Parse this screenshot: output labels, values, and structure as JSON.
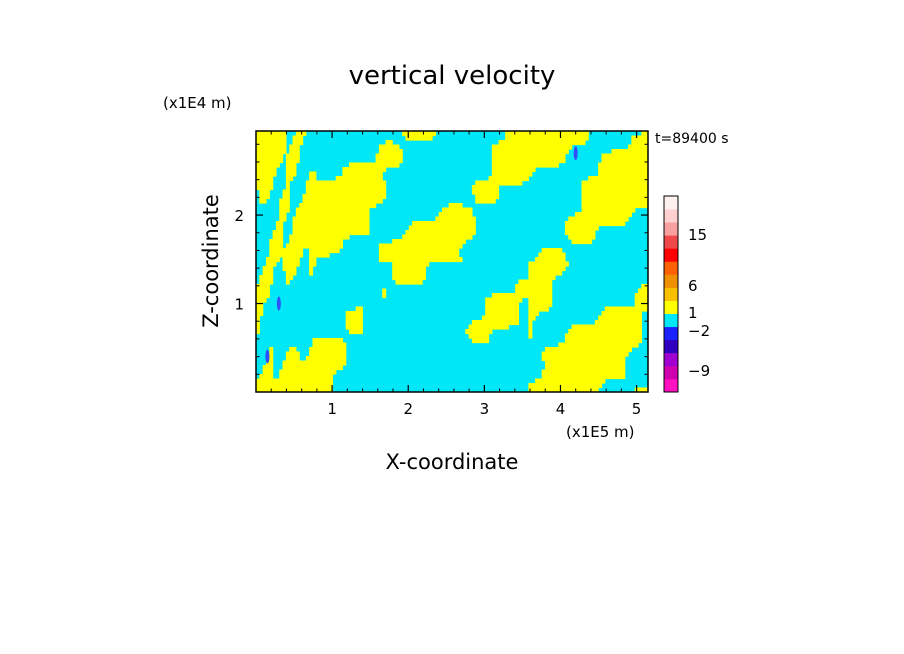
{
  "chart_data": {
    "type": "heatmap",
    "title": "vertical velocity",
    "xlabel": "X-coordinate",
    "ylabel": "Z-coordinate",
    "x_unit": "(x1E5 m)",
    "y_unit": "(x1E4 m)",
    "time_label": "t=89400 s",
    "xlim": [
      0,
      5.15
    ],
    "ylim": [
      0,
      2.95
    ],
    "x_ticks": [
      1,
      2,
      3,
      4,
      5
    ],
    "x_tick_labels": [
      "1",
      "2",
      "3",
      "4",
      "5"
    ],
    "y_ticks": [
      1,
      2
    ],
    "y_tick_labels": [
      "1",
      "2"
    ],
    "field_colors": {
      "positive": "#ffff00",
      "negative": "#00e8f8",
      "strong_negative": "#3050ff"
    },
    "colorbar": {
      "levels": [
        {
          "color": "#ff10c0"
        },
        {
          "color": "#d000b0"
        },
        {
          "color": "#a000d0"
        },
        {
          "color": "#3000c0"
        },
        {
          "color": "#1a20ff"
        },
        {
          "color": "#00e8f8"
        },
        {
          "color": "#ffff00"
        },
        {
          "color": "#f8c000"
        },
        {
          "color": "#f09000"
        },
        {
          "color": "#ff6000"
        },
        {
          "color": "#ff0000"
        },
        {
          "color": "#f04848"
        },
        {
          "color": "#f8a0a0"
        },
        {
          "color": "#ffd0d0"
        },
        {
          "color": "#fff0f0"
        }
      ],
      "labels": [
        "15",
        "6",
        "1",
        "−2",
        "−9"
      ]
    }
  }
}
